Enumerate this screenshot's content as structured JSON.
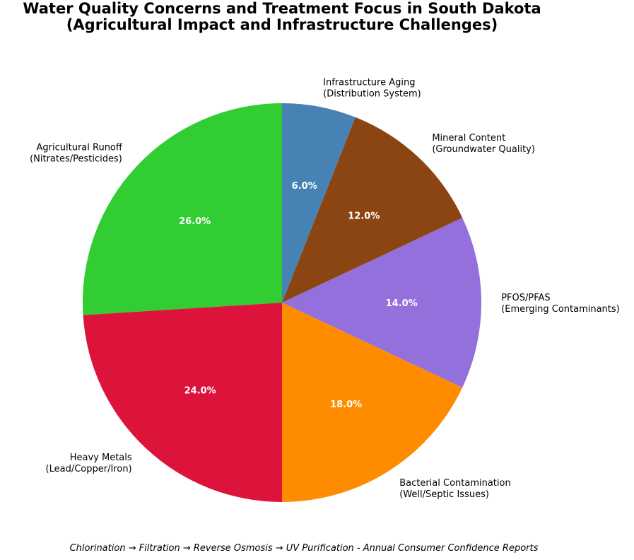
{
  "chart_data": {
    "type": "pie",
    "title": "Water Quality Concerns and Treatment Focus in South Dakota\n(Agricultural Impact and Infrastructure Challenges)",
    "categories": [
      "Agricultural Runoff\n(Nitrates/Pesticides)",
      "Heavy Metals\n(Lead/Copper/Iron)",
      "Bacterial Contamination\n(Well/Septic Issues)",
      "PFOS/PFAS\n(Emerging Contaminants)",
      "Mineral Content\n(Groundwater Quality)",
      "Infrastructure Aging\n(Distribution System)"
    ],
    "values": [
      26,
      24,
      18,
      14,
      12,
      6
    ],
    "value_labels": [
      "26.0%",
      "24.0%",
      "18.0%",
      "14.0%",
      "12.0%",
      "6.0%"
    ],
    "colors": [
      "#32CD32",
      "#DC143C",
      "#FF8C00",
      "#9370DB",
      "#8B4513",
      "#4682B4"
    ],
    "footnote": "Chlorination → Filtration → Reverse Osmosis → UV Purification - Annual Consumer Confidence Reports"
  }
}
